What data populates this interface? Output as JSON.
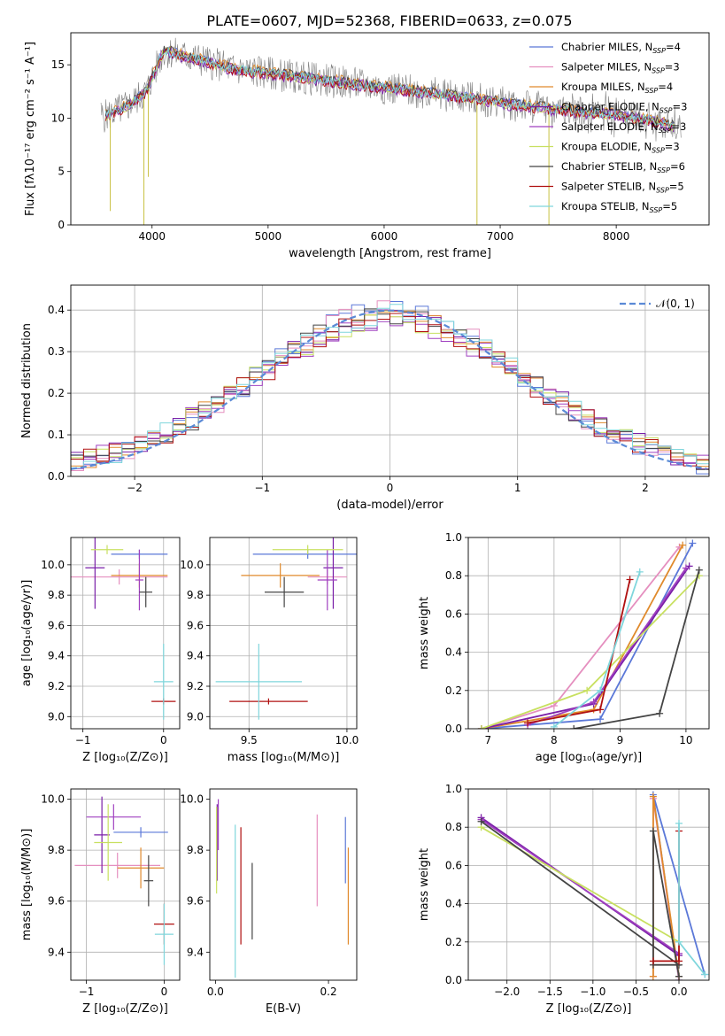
{
  "page_title": "PLATE=0607, MJD=52368, FIBERID=0633, z=0.075",
  "colors": {
    "Chabrier MILES": "#5b78d8",
    "Salpeter MILES": "#e58fbf",
    "Kroupa MILES": "#e08a2c",
    "Chabrier ELODIE": "#7a1fa8",
    "Salpeter ELODIE": "#a040c0",
    "Kroupa ELODIE": "#c8e060",
    "Chabrier STELIB": "#444444",
    "Salpeter STELIB": "#b01010",
    "Kroupa STELIB": "#7fd6dc",
    "data": "#808080",
    "gaussian": "#5b8ad6",
    "grid": "#b0b0b0"
  },
  "chart_data": [
    {
      "id": "spectrum",
      "type": "line",
      "title": "PLATE=0607, MJD=52368, FIBERID=0633, z=0.075",
      "xlabel": "wavelength [Angstrom, rest frame]",
      "ylabel": "Flux [fλ10⁻¹⁷ erg cm⁻² s⁻¹ A⁻¹]",
      "xlim": [
        3300,
        8800
      ],
      "ylim": [
        0,
        18
      ],
      "xticks": [
        4000,
        5000,
        6000,
        7000,
        8000
      ],
      "yticks": [
        0,
        5,
        10,
        15
      ],
      "grid": false,
      "legend_position": "top-right",
      "continuum_x": [
        3600,
        3800,
        3950,
        4100,
        4400,
        4700,
        5000,
        5300,
        5600,
        5900,
        6200,
        6500,
        6800,
        7100,
        7400,
        7700,
        8000,
        8300,
        8500
      ],
      "continuum_y": [
        10.2,
        11.2,
        12.5,
        16.3,
        15.5,
        14.6,
        14.2,
        13.8,
        13.4,
        13.0,
        12.6,
        12.2,
        11.8,
        11.3,
        10.9,
        10.6,
        10.3,
        9.8,
        9.2
      ],
      "series": [
        {
          "name": "Chabrier MILES, N_SSP=4",
          "offset": 0.1
        },
        {
          "name": "Salpeter MILES, N_SSP=3",
          "offset": -0.1
        },
        {
          "name": "Kroupa MILES, N_SSP=4",
          "offset": 0.2
        },
        {
          "name": "Chabrier ELODIE, N_SSP=3",
          "offset": -0.2
        },
        {
          "name": "Salpeter ELODIE, N_SSP=3",
          "offset": 0.05
        },
        {
          "name": "Kroupa ELODIE, N_SSP=3",
          "offset": -0.05
        },
        {
          "name": "Chabrier STELIB, N_SSP=6",
          "offset": 0.15
        },
        {
          "name": "Salpeter STELIB, N_SSP=5",
          "offset": -0.15
        },
        {
          "name": "Kroupa STELIB, N_SSP=5",
          "offset": 0.0
        }
      ],
      "legend": [
        {
          "label": "Chabrier MILES, N",
          "sub": "SSP",
          "tail": "=4",
          "color": "#5b78d8"
        },
        {
          "label": "Salpeter MILES, N",
          "sub": "SSP",
          "tail": "=3",
          "color": "#e58fbf"
        },
        {
          "label": "Kroupa MILES, N",
          "sub": "SSP",
          "tail": "=4",
          "color": "#e08a2c"
        },
        {
          "label": "Chabrier ELODIE, N",
          "sub": "SSP",
          "tail": "=3",
          "color": "#7a1fa8"
        },
        {
          "label": "Salpeter ELODIE, N",
          "sub": "SSP",
          "tail": "=3",
          "color": "#a040c0"
        },
        {
          "label": "Kroupa ELODIE, N",
          "sub": "SSP",
          "tail": "=3",
          "color": "#c8e060"
        },
        {
          "label": "Chabrier STELIB, N",
          "sub": "SSP",
          "tail": "=6",
          "color": "#444444"
        },
        {
          "label": "Salpeter STELIB, N",
          "sub": "SSP",
          "tail": "=5",
          "color": "#b01010"
        },
        {
          "label": "Kroupa STELIB, N",
          "sub": "SSP",
          "tail": "=5",
          "color": "#7fd6dc"
        }
      ]
    },
    {
      "id": "residuals",
      "type": "line",
      "xlabel": "(data-model)/error",
      "ylabel": "Normed distribution",
      "xlim": [
        -2.5,
        2.5
      ],
      "ylim": [
        0,
        0.46
      ],
      "xticks": [
        -2,
        -1,
        0,
        1,
        2
      ],
      "yticks": [
        0.0,
        0.1,
        0.2,
        0.3,
        0.4
      ],
      "grid": true,
      "legend_position": "top-right",
      "legend_label": "𝒩(0, 1)",
      "bin_width": 0.1,
      "series": [
        {
          "name": "Chabrier MILES",
          "amp": 0.4,
          "sigma": 1.0,
          "seed": 3
        },
        {
          "name": "Salpeter MILES",
          "amp": 0.39,
          "sigma": 1.03,
          "seed": 7
        },
        {
          "name": "Kroupa MILES",
          "amp": 0.38,
          "sigma": 1.05,
          "seed": 11
        },
        {
          "name": "Chabrier ELODIE",
          "amp": 0.37,
          "sigma": 1.08,
          "seed": 13
        },
        {
          "name": "Salpeter ELODIE",
          "amp": 0.36,
          "sigma": 1.1,
          "seed": 17
        },
        {
          "name": "Kroupa ELODIE",
          "amp": 0.37,
          "sigma": 1.07,
          "seed": 19
        },
        {
          "name": "Chabrier STELIB",
          "amp": 0.38,
          "sigma": 1.04,
          "seed": 23
        },
        {
          "name": "Salpeter STELIB",
          "amp": 0.37,
          "sigma": 1.06,
          "seed": 29
        },
        {
          "name": "Kroupa STELIB",
          "amp": 0.38,
          "sigma": 1.05,
          "seed": 31
        }
      ]
    },
    {
      "id": "age_vs_Z",
      "type": "scatter",
      "xlabel": "Z [log₁₀(Z/Z⊙)]",
      "ylabel": "age  [log₁₀(age/yr)]",
      "xlim": [
        -1.15,
        0.2
      ],
      "ylim": [
        8.92,
        10.18
      ],
      "xticks": [
        -1,
        0
      ],
      "yticks": [
        9.0,
        9.2,
        9.4,
        9.6,
        9.8,
        10.0
      ],
      "grid": true,
      "points": [
        {
          "s": 0,
          "x": -0.3,
          "y": 10.07,
          "xerr": 0.35,
          "yerr": 0.03
        },
        {
          "s": 1,
          "x": -0.55,
          "y": 9.92,
          "xerr": 0.6,
          "yerr": 0.05
        },
        {
          "s": 2,
          "x": -0.3,
          "y": 9.93,
          "xerr": 0.35,
          "yerr": 0.08
        },
        {
          "s": 3,
          "x": -0.85,
          "y": 9.98,
          "xerr": 0.12,
          "yerr": 0.27
        },
        {
          "s": 4,
          "x": -0.3,
          "y": 9.9,
          "xerr": 0.05,
          "yerr": 0.2
        },
        {
          "s": 5,
          "x": -0.7,
          "y": 10.1,
          "xerr": 0.2,
          "yerr": 0.03
        },
        {
          "s": 6,
          "x": -0.22,
          "y": 9.82,
          "xerr": 0.08,
          "yerr": 0.1
        },
        {
          "s": 7,
          "x": 0.0,
          "y": 9.1,
          "xerr": 0.15,
          "yerr": 0.02
        },
        {
          "s": 8,
          "x": 0.0,
          "y": 9.23,
          "xerr": 0.12,
          "yerr": 0.25
        }
      ]
    },
    {
      "id": "age_vs_mass",
      "type": "scatter",
      "xlabel": "mass [log₁₀(M/M⊙)]",
      "ylabel": "",
      "xlim": [
        9.3,
        10.05
      ],
      "ylim": [
        8.92,
        10.18
      ],
      "xticks": [
        9.5,
        10.0
      ],
      "yticks": [
        9.0,
        9.2,
        9.4,
        9.6,
        9.8,
        10.0
      ],
      "grid": true,
      "points": [
        {
          "s": 0,
          "x": 9.8,
          "y": 10.07,
          "xerr": 0.28,
          "yerr": 0.03
        },
        {
          "s": 1,
          "x": 9.9,
          "y": 9.92,
          "xerr": 0.1,
          "yerr": 0.05
        },
        {
          "s": 2,
          "x": 9.66,
          "y": 9.93,
          "xerr": 0.2,
          "yerr": 0.08
        },
        {
          "s": 3,
          "x": 9.93,
          "y": 9.98,
          "xerr": 0.05,
          "yerr": 0.27
        },
        {
          "s": 4,
          "x": 9.9,
          "y": 9.9,
          "xerr": 0.05,
          "yerr": 0.2
        },
        {
          "s": 5,
          "x": 9.8,
          "y": 10.1,
          "xerr": 0.18,
          "yerr": 0.03
        },
        {
          "s": 6,
          "x": 9.68,
          "y": 9.82,
          "xerr": 0.1,
          "yerr": 0.1
        },
        {
          "s": 7,
          "x": 9.6,
          "y": 9.1,
          "xerr": 0.2,
          "yerr": 0.02
        },
        {
          "s": 8,
          "x": 9.55,
          "y": 9.23,
          "xerr": 0.22,
          "yerr": 0.25
        }
      ]
    },
    {
      "id": "weight_vs_age",
      "type": "line",
      "xlabel": "age  [log₁₀(age/yr)]",
      "ylabel": "mass weight",
      "xlim": [
        6.7,
        10.35
      ],
      "ylim": [
        0,
        1.0
      ],
      "xticks": [
        7,
        8,
        9,
        10
      ],
      "yticks": [
        0.0,
        0.2,
        0.4,
        0.6,
        0.8,
        1.0
      ],
      "grid": true,
      "series": [
        {
          "s": 0,
          "x": [
            6.9,
            8.7,
            10.1
          ],
          "y": [
            0.0,
            0.05,
            0.97
          ]
        },
        {
          "s": 1,
          "x": [
            6.9,
            8.0,
            9.9
          ],
          "y": [
            0.0,
            0.12,
            0.95
          ]
        },
        {
          "s": 2,
          "x": [
            6.9,
            8.6,
            9.95
          ],
          "y": [
            0.0,
            0.1,
            0.96
          ]
        },
        {
          "s": 3,
          "x": [
            6.9,
            8.6,
            10.05
          ],
          "y": [
            0.0,
            0.13,
            0.85
          ]
        },
        {
          "s": 4,
          "x": [
            7.6,
            8.6,
            10.0
          ],
          "y": [
            0.02,
            0.14,
            0.84
          ]
        },
        {
          "s": 5,
          "x": [
            6.9,
            8.5,
            10.2
          ],
          "y": [
            0.0,
            0.2,
            0.8
          ]
        },
        {
          "s": 6,
          "x": [
            8.3,
            9.6,
            10.2
          ],
          "y": [
            0.0,
            0.08,
            0.83
          ]
        },
        {
          "s": 7,
          "x": [
            7.6,
            8.7,
            9.15
          ],
          "y": [
            0.03,
            0.1,
            0.78
          ]
        },
        {
          "s": 8,
          "x": [
            8.0,
            8.7,
            9.3
          ],
          "y": [
            0.01,
            0.2,
            0.82
          ]
        }
      ]
    },
    {
      "id": "mass_vs_Z",
      "type": "scatter",
      "xlabel": "Z [log₁₀(Z/Z⊙)]",
      "ylabel": "mass [log₁₀(M/M⊙)]",
      "xlim": [
        -1.2,
        0.2
      ],
      "ylim": [
        9.29,
        10.04
      ],
      "xticks": [
        -1,
        0
      ],
      "yticks": [
        9.4,
        9.6,
        9.8,
        10.0
      ],
      "grid": true,
      "points": [
        {
          "s": 0,
          "x": -0.3,
          "y": 9.87,
          "xerr": 0.35,
          "yerr": 0.02
        },
        {
          "s": 1,
          "x": -0.6,
          "y": 9.74,
          "xerr": 0.55,
          "yerr": 0.05
        },
        {
          "s": 2,
          "x": -0.3,
          "y": 9.73,
          "xerr": 0.3,
          "yerr": 0.08
        },
        {
          "s": 3,
          "x": -0.8,
          "y": 9.86,
          "xerr": 0.1,
          "yerr": 0.15
        },
        {
          "s": 4,
          "x": -0.65,
          "y": 9.93,
          "xerr": 0.35,
          "yerr": 0.05
        },
        {
          "s": 5,
          "x": -0.72,
          "y": 9.83,
          "xerr": 0.18,
          "yerr": 0.15
        },
        {
          "s": 6,
          "x": -0.2,
          "y": 9.68,
          "xerr": 0.06,
          "yerr": 0.1
        },
        {
          "s": 7,
          "x": 0.0,
          "y": 9.51,
          "xerr": 0.13,
          "yerr": 0.08
        },
        {
          "s": 8,
          "x": 0.0,
          "y": 9.47,
          "xerr": 0.12,
          "yerr": 0.12
        }
      ]
    },
    {
      "id": "ebv",
      "type": "scatter",
      "xlabel": "E(B-V)",
      "ylabel": "",
      "xlim": [
        -0.01,
        0.25
      ],
      "ylim": [
        9.29,
        10.04
      ],
      "xticks": [
        0.0,
        0.2
      ],
      "yticks": [
        9.4,
        9.6,
        9.8,
        10.0
      ],
      "grid": false,
      "points": [
        {
          "s": 0,
          "x": 0.23,
          "y": 9.8,
          "xerr": 0.0,
          "yerr": 0.13
        },
        {
          "s": 1,
          "x": 0.18,
          "y": 9.76,
          "xerr": 0.0,
          "yerr": 0.18
        },
        {
          "s": 2,
          "x": 0.235,
          "y": 9.62,
          "xerr": 0.0,
          "yerr": 0.19
        },
        {
          "s": 3,
          "x": 0.003,
          "y": 9.83,
          "xerr": 0.0,
          "yerr": 0.15
        },
        {
          "s": 4,
          "x": 0.005,
          "y": 9.9,
          "xerr": 0.0,
          "yerr": 0.1
        },
        {
          "s": 5,
          "x": 0.002,
          "y": 9.8,
          "xerr": 0.0,
          "yerr": 0.17
        },
        {
          "s": 6,
          "x": 0.065,
          "y": 9.6,
          "xerr": 0.0,
          "yerr": 0.15
        },
        {
          "s": 7,
          "x": 0.045,
          "y": 9.66,
          "xerr": 0.0,
          "yerr": 0.23
        },
        {
          "s": 8,
          "x": 0.035,
          "y": 9.6,
          "xerr": 0.0,
          "yerr": 0.3
        }
      ]
    },
    {
      "id": "weight_vs_Z",
      "type": "line",
      "xlabel": "Z [log₁₀(Z/Z⊙)]",
      "ylabel": "mass weight",
      "xlim": [
        -2.45,
        0.35
      ],
      "ylim": [
        0,
        1.0
      ],
      "xticks": [
        -2.0,
        -1.5,
        -1.0,
        -0.5,
        0.0
      ],
      "yticks": [
        0.0,
        0.2,
        0.4,
        0.6,
        0.8,
        1.0
      ],
      "grid": true,
      "series": [
        {
          "s": 0,
          "x": [
            0.3,
            -0.3,
            0.0
          ],
          "y": [
            0.03,
            0.97,
            0.0
          ]
        },
        {
          "s": 1,
          "x": [
            0.0,
            -0.3,
            -0.3
          ],
          "y": [
            0.0,
            0.95,
            0.02
          ]
        },
        {
          "s": 2,
          "x": [
            -0.3,
            -0.3,
            0.0
          ],
          "y": [
            0.02,
            0.96,
            0.02
          ]
        },
        {
          "s": 3,
          "x": [
            -2.3,
            0.0
          ],
          "y": [
            0.85,
            0.13
          ]
        },
        {
          "s": 4,
          "x": [
            -2.3,
            0.0
          ],
          "y": [
            0.84,
            0.14
          ]
        },
        {
          "s": 5,
          "x": [
            -2.3,
            0.0
          ],
          "y": [
            0.8,
            0.2
          ]
        },
        {
          "s": 6,
          "x": [
            -2.3,
            0.0,
            -0.3,
            -0.3,
            0.0
          ],
          "y": [
            0.83,
            0.08,
            0.08,
            0.78,
            0.02
          ]
        },
        {
          "s": 7,
          "x": [
            0.0,
            0.0,
            -0.3
          ],
          "y": [
            0.78,
            0.1,
            0.1
          ]
        },
        {
          "s": 8,
          "x": [
            0.3,
            0.0,
            0.0
          ],
          "y": [
            0.03,
            0.2,
            0.82
          ]
        }
      ]
    }
  ]
}
